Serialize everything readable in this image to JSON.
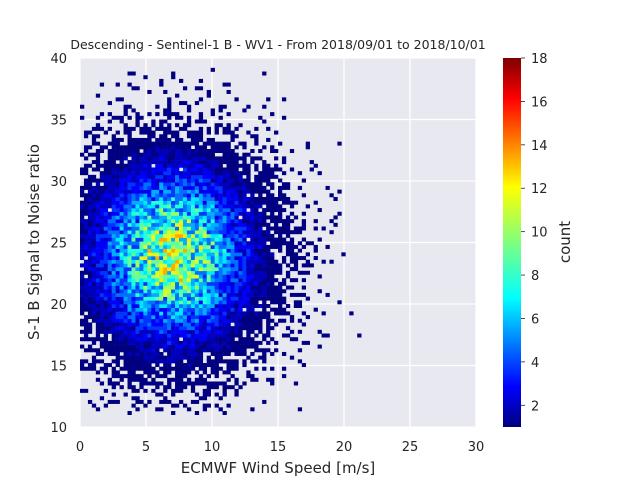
{
  "chart_data": {
    "type": "heatmap",
    "title": "Descending - Sentinel-1 B - WV1 - From 2018/09/01 to 2018/10/01",
    "xlabel": "ECMWF Wind Speed [m/s]",
    "ylabel": "S-1 B Signal to Noise ratio",
    "xlim": [
      0,
      30
    ],
    "ylim": [
      10,
      40
    ],
    "x_ticks": [
      "0",
      "5",
      "10",
      "15",
      "20",
      "25",
      "30"
    ],
    "y_ticks": [
      "10",
      "15",
      "20",
      "25",
      "30",
      "35",
      "40"
    ],
    "grid": true,
    "colormap": "jet",
    "colorbar": {
      "label": "count",
      "range": [
        1,
        18
      ],
      "ticks": [
        "2",
        "4",
        "6",
        "8",
        "10",
        "12",
        "14",
        "16",
        "18"
      ]
    },
    "density_center": {
      "x": 7,
      "y": 24
    },
    "peak_count": 18,
    "bin_size": {
      "x": 0.3,
      "y": 0.3
    }
  },
  "colors": {
    "axes_background": "#e8e8f0",
    "grid": "#ffffff",
    "text": "#262626"
  }
}
